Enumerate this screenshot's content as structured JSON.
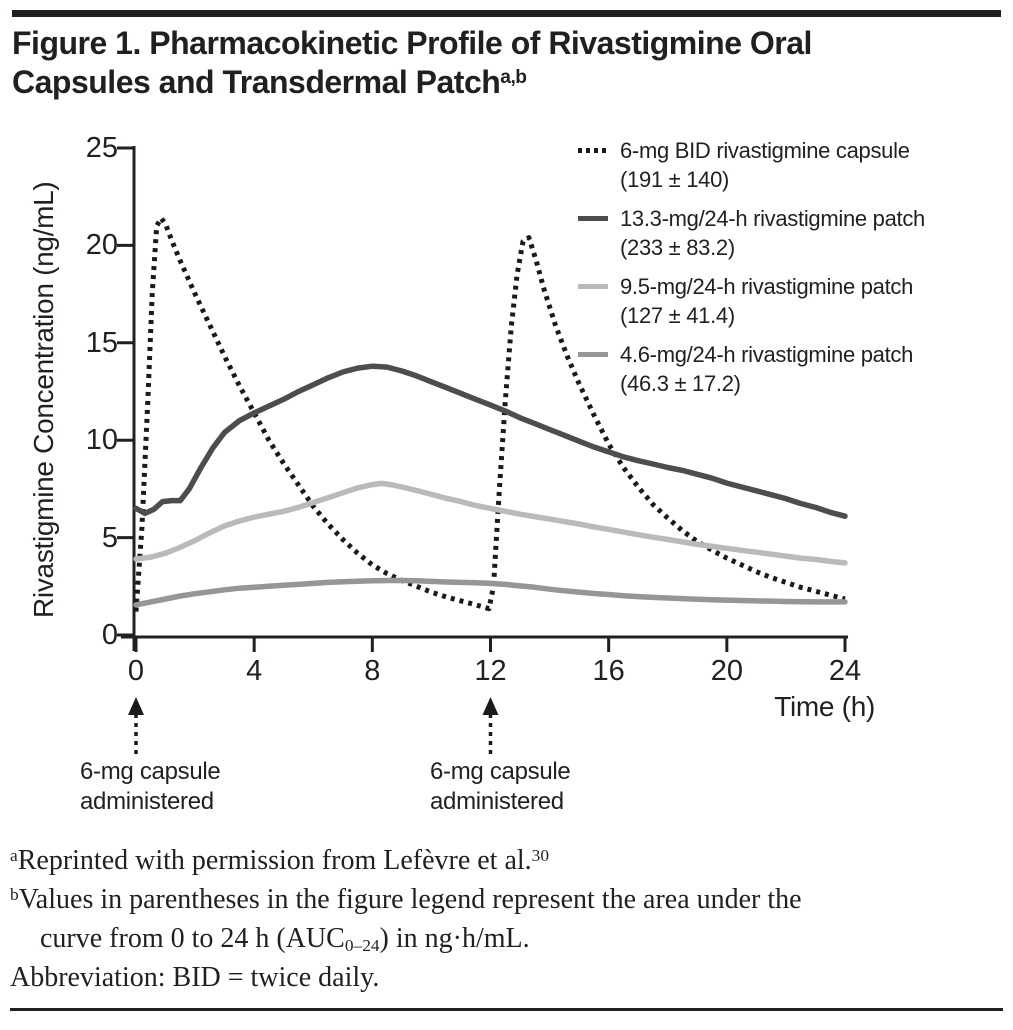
{
  "title": {
    "line1": "Figure 1. Pharmacokinetic Profile of Rivastigmine Oral",
    "line2": "Capsules and Transdermal Patch",
    "superscript": "a,b"
  },
  "colors": {
    "text": "#231f20",
    "axis": "#231f20",
    "capsule_line": "#1a1a1a",
    "patch_133_line": "#4d4d4d",
    "patch_95_line": "#bababa",
    "patch_46_line": "#969696"
  },
  "chart_data": {
    "type": "line",
    "xlabel": "Time (h)",
    "ylabel": "Rivastigmine Concentration (ng/mL)",
    "xlim": [
      0,
      24
    ],
    "ylim": [
      0,
      25
    ],
    "xticks": [
      "0",
      "4",
      "8",
      "12",
      "16",
      "20",
      "24"
    ],
    "yticks": [
      "25",
      "20",
      "15",
      "10",
      "5",
      "0"
    ],
    "grid": false,
    "legend_position": "upper right",
    "series": [
      {
        "name": "6-mg BID rivastigmine capsule",
        "auc": "(191 ± 140)",
        "style": "dotted",
        "color": "#1a1a1a",
        "points": [
          [
            0,
            1.2
          ],
          [
            0.2,
            5.5
          ],
          [
            0.4,
            12
          ],
          [
            0.55,
            17.5
          ],
          [
            0.7,
            21.0
          ],
          [
            0.85,
            21.4
          ],
          [
            1.0,
            21.1
          ],
          [
            1.2,
            20.3
          ],
          [
            1.5,
            19.2
          ],
          [
            2,
            17.5
          ],
          [
            2.5,
            15.9
          ],
          [
            3,
            14.3
          ],
          [
            3.5,
            12.8
          ],
          [
            4,
            11.4
          ],
          [
            4.5,
            10.0
          ],
          [
            5,
            8.8
          ],
          [
            5.5,
            7.7
          ],
          [
            6,
            6.6
          ],
          [
            6.5,
            5.7
          ],
          [
            7,
            4.9
          ],
          [
            7.5,
            4.2
          ],
          [
            8,
            3.6
          ],
          [
            8.5,
            3.15
          ],
          [
            9,
            2.8
          ],
          [
            9.5,
            2.5
          ],
          [
            10,
            2.2
          ],
          [
            10.5,
            1.95
          ],
          [
            11,
            1.75
          ],
          [
            11.5,
            1.55
          ],
          [
            11.95,
            1.35
          ],
          [
            12.1,
            2.5
          ],
          [
            12.3,
            7.5
          ],
          [
            12.5,
            12.0
          ],
          [
            12.7,
            15.8
          ],
          [
            12.9,
            18.5
          ],
          [
            13.1,
            20.2
          ],
          [
            13.3,
            20.4
          ],
          [
            13.55,
            19.2
          ],
          [
            13.8,
            17.8
          ],
          [
            14.2,
            15.9
          ],
          [
            14.6,
            14.3
          ],
          [
            15,
            12.9
          ],
          [
            15.5,
            11.3
          ],
          [
            16,
            9.8
          ],
          [
            16.5,
            8.6
          ],
          [
            17,
            7.6
          ],
          [
            17.5,
            6.7
          ],
          [
            18,
            6.0
          ],
          [
            18.5,
            5.35
          ],
          [
            19,
            4.8
          ],
          [
            19.5,
            4.35
          ],
          [
            20,
            3.95
          ],
          [
            20.5,
            3.6
          ],
          [
            21,
            3.25
          ],
          [
            21.5,
            2.95
          ],
          [
            22,
            2.7
          ],
          [
            22.5,
            2.45
          ],
          [
            23,
            2.25
          ],
          [
            23.5,
            2.05
          ],
          [
            24,
            1.85
          ]
        ]
      },
      {
        "name": "13.3-mg/24-h rivastigmine patch",
        "auc": "(233 ± 83.2)",
        "style": "solid",
        "color": "#4d4d4d",
        "points": [
          [
            0,
            6.5
          ],
          [
            0.3,
            6.25
          ],
          [
            0.6,
            6.45
          ],
          [
            0.9,
            6.85
          ],
          [
            1.2,
            6.9
          ],
          [
            1.5,
            6.9
          ],
          [
            1.8,
            7.5
          ],
          [
            2.2,
            8.6
          ],
          [
            2.6,
            9.6
          ],
          [
            3,
            10.4
          ],
          [
            3.5,
            11.0
          ],
          [
            4,
            11.4
          ],
          [
            4.5,
            11.75
          ],
          [
            5,
            12.1
          ],
          [
            5.5,
            12.5
          ],
          [
            6,
            12.85
          ],
          [
            6.5,
            13.2
          ],
          [
            7,
            13.5
          ],
          [
            7.5,
            13.7
          ],
          [
            8,
            13.8
          ],
          [
            8.5,
            13.75
          ],
          [
            9,
            13.55
          ],
          [
            9.5,
            13.3
          ],
          [
            10,
            13.0
          ],
          [
            10.5,
            12.7
          ],
          [
            11,
            12.4
          ],
          [
            11.5,
            12.1
          ],
          [
            12,
            11.8
          ],
          [
            12.5,
            11.5
          ],
          [
            13,
            11.15
          ],
          [
            13.5,
            10.85
          ],
          [
            14,
            10.55
          ],
          [
            14.5,
            10.25
          ],
          [
            15,
            9.95
          ],
          [
            15.5,
            9.65
          ],
          [
            16,
            9.4
          ],
          [
            16.5,
            9.15
          ],
          [
            17,
            8.95
          ],
          [
            17.5,
            8.78
          ],
          [
            18,
            8.6
          ],
          [
            18.5,
            8.45
          ],
          [
            19,
            8.25
          ],
          [
            19.5,
            8.05
          ],
          [
            20,
            7.8
          ],
          [
            20.5,
            7.6
          ],
          [
            21,
            7.4
          ],
          [
            21.5,
            7.2
          ],
          [
            22,
            7.0
          ],
          [
            22.5,
            6.75
          ],
          [
            23,
            6.55
          ],
          [
            23.5,
            6.3
          ],
          [
            24,
            6.1
          ]
        ]
      },
      {
        "name": "9.5-mg/24-h rivastigmine patch",
        "auc": "(127 ± 41.4)",
        "style": "solid",
        "color": "#bababa",
        "points": [
          [
            0,
            3.9
          ],
          [
            0.5,
            4.0
          ],
          [
            1,
            4.2
          ],
          [
            1.5,
            4.5
          ],
          [
            2,
            4.85
          ],
          [
            2.5,
            5.25
          ],
          [
            3,
            5.6
          ],
          [
            3.5,
            5.85
          ],
          [
            4,
            6.05
          ],
          [
            4.5,
            6.2
          ],
          [
            5,
            6.35
          ],
          [
            5.5,
            6.55
          ],
          [
            6,
            6.8
          ],
          [
            6.5,
            7.05
          ],
          [
            7,
            7.3
          ],
          [
            7.5,
            7.55
          ],
          [
            8,
            7.72
          ],
          [
            8.3,
            7.78
          ],
          [
            8.7,
            7.7
          ],
          [
            9,
            7.6
          ],
          [
            9.5,
            7.42
          ],
          [
            10,
            7.22
          ],
          [
            10.5,
            7.02
          ],
          [
            11,
            6.85
          ],
          [
            11.5,
            6.65
          ],
          [
            12,
            6.5
          ],
          [
            12.5,
            6.35
          ],
          [
            13,
            6.2
          ],
          [
            13.5,
            6.08
          ],
          [
            14,
            5.95
          ],
          [
            14.5,
            5.82
          ],
          [
            15,
            5.7
          ],
          [
            15.5,
            5.55
          ],
          [
            16,
            5.42
          ],
          [
            16.5,
            5.28
          ],
          [
            17,
            5.15
          ],
          [
            17.5,
            5.02
          ],
          [
            18,
            4.9
          ],
          [
            18.5,
            4.78
          ],
          [
            19,
            4.65
          ],
          [
            19.5,
            4.55
          ],
          [
            20,
            4.45
          ],
          [
            20.5,
            4.35
          ],
          [
            21,
            4.25
          ],
          [
            21.5,
            4.15
          ],
          [
            22,
            4.05
          ],
          [
            22.5,
            3.95
          ],
          [
            23,
            3.88
          ],
          [
            23.5,
            3.78
          ],
          [
            24,
            3.7
          ]
        ]
      },
      {
        "name": "4.6-mg/24-h rivastigmine patch",
        "auc": "(46.3 ± 17.2)",
        "style": "solid",
        "color": "#969696",
        "points": [
          [
            0,
            1.55
          ],
          [
            0.5,
            1.7
          ],
          [
            1,
            1.85
          ],
          [
            1.5,
            2.0
          ],
          [
            2,
            2.12
          ],
          [
            2.5,
            2.22
          ],
          [
            3,
            2.32
          ],
          [
            3.5,
            2.4
          ],
          [
            4,
            2.45
          ],
          [
            4.5,
            2.5
          ],
          [
            5,
            2.55
          ],
          [
            5.5,
            2.6
          ],
          [
            6,
            2.65
          ],
          [
            6.5,
            2.7
          ],
          [
            7,
            2.73
          ],
          [
            7.5,
            2.76
          ],
          [
            8,
            2.78
          ],
          [
            8.5,
            2.8
          ],
          [
            9,
            2.8
          ],
          [
            9.5,
            2.78
          ],
          [
            10,
            2.75
          ],
          [
            10.5,
            2.72
          ],
          [
            11,
            2.7
          ],
          [
            11.5,
            2.68
          ],
          [
            12,
            2.65
          ],
          [
            12.5,
            2.6
          ],
          [
            13,
            2.52
          ],
          [
            13.5,
            2.45
          ],
          [
            14,
            2.35
          ],
          [
            14.5,
            2.27
          ],
          [
            15,
            2.2
          ],
          [
            15.5,
            2.13
          ],
          [
            16,
            2.08
          ],
          [
            16.5,
            2.02
          ],
          [
            17,
            1.97
          ],
          [
            17.5,
            1.93
          ],
          [
            18,
            1.9
          ],
          [
            18.5,
            1.87
          ],
          [
            19,
            1.84
          ],
          [
            19.5,
            1.81
          ],
          [
            20,
            1.79
          ],
          [
            20.5,
            1.77
          ],
          [
            21,
            1.75
          ],
          [
            21.5,
            1.74
          ],
          [
            22,
            1.72
          ],
          [
            22.5,
            1.71
          ],
          [
            23,
            1.7
          ],
          [
            23.5,
            1.7
          ],
          [
            24,
            1.7
          ]
        ]
      }
    ]
  },
  "annotations": {
    "arrows": [
      {
        "time": 0,
        "line1": "6-mg capsule",
        "line2": "administered"
      },
      {
        "time": 12,
        "line1": "6-mg capsule",
        "line2": "administered"
      }
    ]
  },
  "footnotes": {
    "a": {
      "sup": "a",
      "text": "Reprinted with permission from Lefèvre et al.",
      "ref": "30"
    },
    "b": {
      "sup": "b",
      "line1": "Values in parentheses in the figure legend represent the area under the",
      "line2_pre": "curve from 0 to 24 h (AUC",
      "line2_sub": "0–24",
      "line2_post": ") in ng·h/mL."
    },
    "abbreviation": "Abbreviation: BID = twice daily."
  }
}
